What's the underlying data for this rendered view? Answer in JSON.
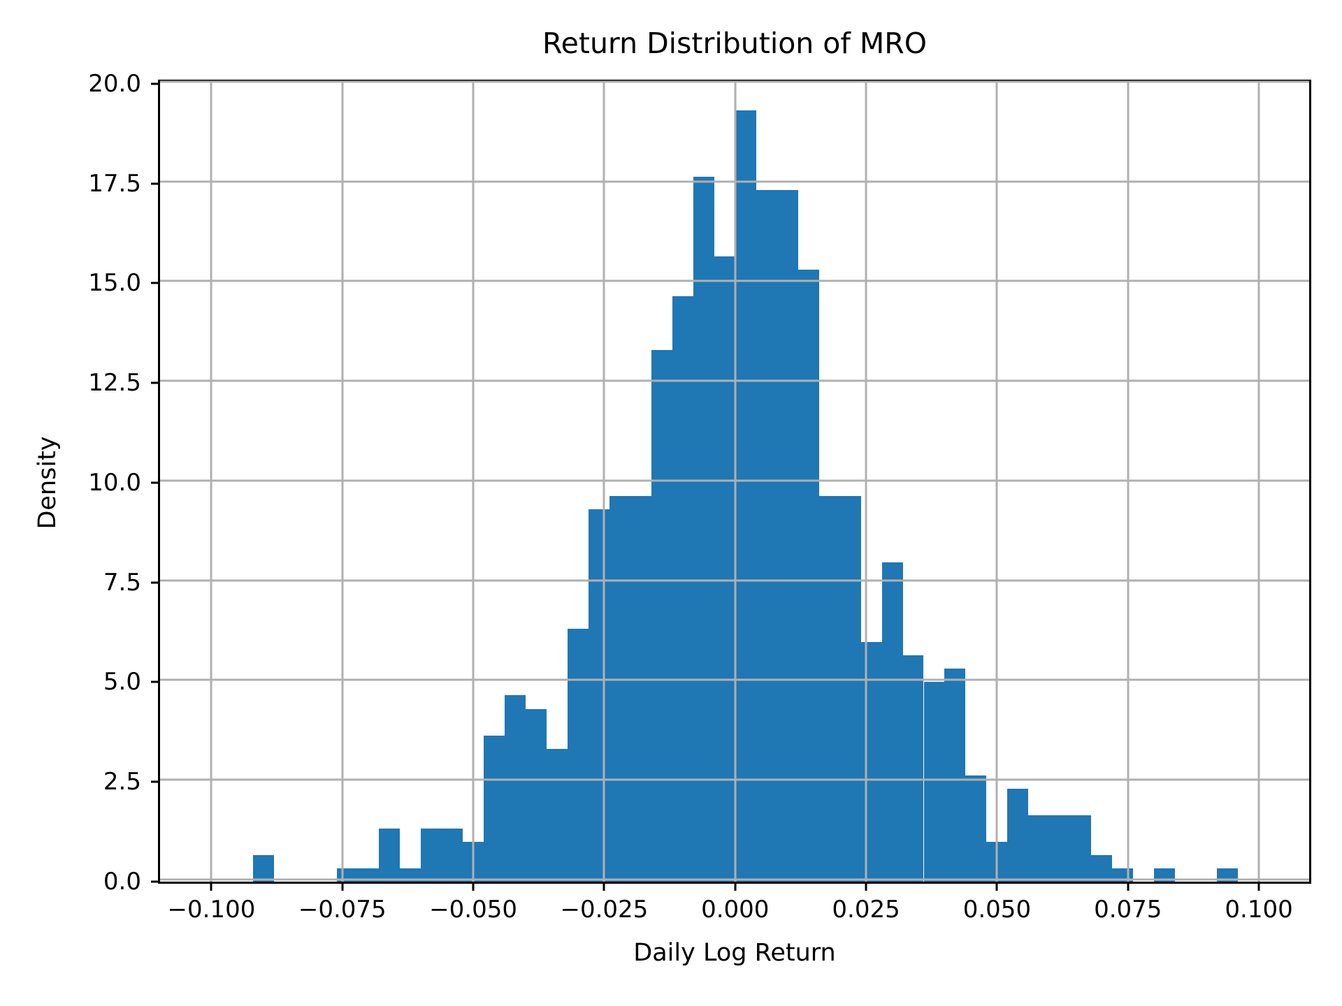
{
  "chart_data": {
    "type": "bar",
    "subtype": "histogram",
    "title": "Return Distribution of MRO",
    "xlabel": "Daily Log Return",
    "ylabel": "Density",
    "legend": "none",
    "grid": "on",
    "grid_color": "#b0b0b0",
    "bar_color": "#1f77b4",
    "text_color": "#000000",
    "background_color": "#ffffff",
    "xlim": [
      -0.1098,
      0.1096
    ],
    "ylim": [
      0,
      20.05
    ],
    "bin_width": 0.004,
    "xticks": [
      {
        "v": -0.1,
        "label": "−0.100"
      },
      {
        "v": -0.075,
        "label": "−0.075"
      },
      {
        "v": -0.05,
        "label": "−0.050"
      },
      {
        "v": -0.025,
        "label": "−0.025"
      },
      {
        "v": 0.0,
        "label": "0.000"
      },
      {
        "v": 0.025,
        "label": "0.025"
      },
      {
        "v": 0.05,
        "label": "0.050"
      },
      {
        "v": 0.075,
        "label": "0.075"
      },
      {
        "v": 0.1,
        "label": "0.100"
      }
    ],
    "yticks": [
      {
        "v": 0.0,
        "label": "0.0"
      },
      {
        "v": 2.5,
        "label": "2.5"
      },
      {
        "v": 5.0,
        "label": "5.0"
      },
      {
        "v": 7.5,
        "label": "7.5"
      },
      {
        "v": 10.0,
        "label": "10.0"
      },
      {
        "v": 12.5,
        "label": "12.5"
      },
      {
        "v": 15.0,
        "label": "15.0"
      },
      {
        "v": 17.5,
        "label": "17.5"
      },
      {
        "v": 20.0,
        "label": "20.0"
      }
    ],
    "bars": [
      {
        "x0": -0.092,
        "h": 0.667
      },
      {
        "x0": -0.088,
        "h": 0
      },
      {
        "x0": -0.084,
        "h": 0
      },
      {
        "x0": -0.08,
        "h": 0
      },
      {
        "x0": -0.076,
        "h": 0.333
      },
      {
        "x0": -0.072,
        "h": 0.333
      },
      {
        "x0": -0.068,
        "h": 1.333
      },
      {
        "x0": -0.064,
        "h": 0.333
      },
      {
        "x0": -0.06,
        "h": 1.333
      },
      {
        "x0": -0.056,
        "h": 1.333
      },
      {
        "x0": -0.052,
        "h": 1.0
      },
      {
        "x0": -0.048,
        "h": 3.667
      },
      {
        "x0": -0.044,
        "h": 4.667
      },
      {
        "x0": -0.04,
        "h": 4.333
      },
      {
        "x0": -0.036,
        "h": 3.333
      },
      {
        "x0": -0.032,
        "h": 6.333
      },
      {
        "x0": -0.028,
        "h": 9.333
      },
      {
        "x0": -0.024,
        "h": 9.667
      },
      {
        "x0": -0.02,
        "h": 9.667
      },
      {
        "x0": -0.016,
        "h": 13.333
      },
      {
        "x0": -0.012,
        "h": 14.667
      },
      {
        "x0": -0.008,
        "h": 17.667
      },
      {
        "x0": -0.004,
        "h": 15.667
      },
      {
        "x0": 0.0,
        "h": 19.333
      },
      {
        "x0": 0.004,
        "h": 17.333
      },
      {
        "x0": 0.008,
        "h": 17.333
      },
      {
        "x0": 0.012,
        "h": 15.333
      },
      {
        "x0": 0.016,
        "h": 9.667
      },
      {
        "x0": 0.02,
        "h": 9.667
      },
      {
        "x0": 0.024,
        "h": 6.0
      },
      {
        "x0": 0.028,
        "h": 8.0
      },
      {
        "x0": 0.032,
        "h": 5.667
      },
      {
        "x0": 0.036,
        "h": 5.0
      },
      {
        "x0": 0.04,
        "h": 5.333
      },
      {
        "x0": 0.044,
        "h": 2.667
      },
      {
        "x0": 0.048,
        "h": 1.0
      },
      {
        "x0": 0.052,
        "h": 2.333
      },
      {
        "x0": 0.056,
        "h": 1.667
      },
      {
        "x0": 0.06,
        "h": 1.667
      },
      {
        "x0": 0.064,
        "h": 1.667
      },
      {
        "x0": 0.068,
        "h": 0.667
      },
      {
        "x0": 0.072,
        "h": 0.333
      },
      {
        "x0": 0.076,
        "h": 0
      },
      {
        "x0": 0.08,
        "h": 0.333
      },
      {
        "x0": 0.084,
        "h": 0
      },
      {
        "x0": 0.088,
        "h": 0
      },
      {
        "x0": 0.092,
        "h": 0.333
      }
    ]
  }
}
